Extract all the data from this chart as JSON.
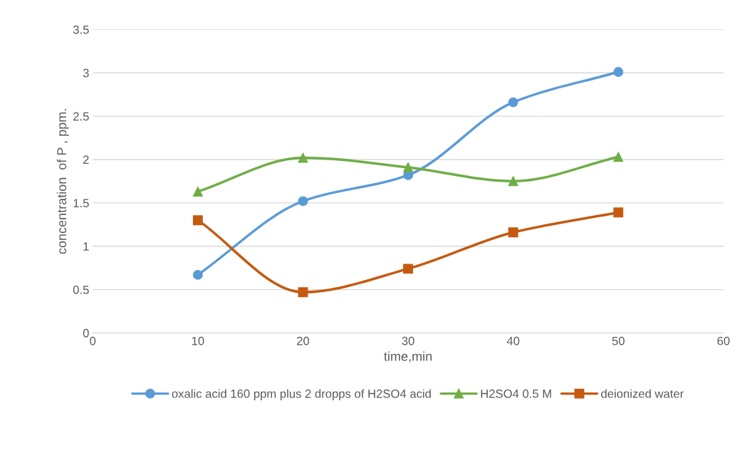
{
  "chart_data": {
    "type": "line",
    "xlabel": "time,min",
    "ylabel": "concentration  of P , ppm.",
    "x": [
      10,
      20,
      30,
      40,
      50
    ],
    "series": [
      {
        "name": "oxalic acid 160 ppm plus 2 dropps of H2SO4 acid",
        "color": "#5b9bd5",
        "marker": "circle",
        "values": [
          0.67,
          1.52,
          1.82,
          2.66,
          3.01
        ]
      },
      {
        "name": "H2SO4 0.5 M",
        "color": "#70ad47",
        "marker": "triangle",
        "values": [
          1.63,
          2.02,
          1.91,
          1.75,
          2.03
        ]
      },
      {
        "name": "deionized water",
        "color": "#c55a11",
        "marker": "square",
        "values": [
          1.3,
          0.47,
          0.74,
          1.16,
          1.39
        ]
      }
    ],
    "xlim": [
      0,
      60
    ],
    "xticks": [
      0,
      10,
      20,
      30,
      40,
      50,
      60
    ],
    "ylim": [
      0,
      3.5
    ],
    "yticks": [
      0,
      0.5,
      1,
      1.5,
      2,
      2.5,
      3,
      3.5
    ],
    "grid": "y",
    "legend": "bottom"
  }
}
